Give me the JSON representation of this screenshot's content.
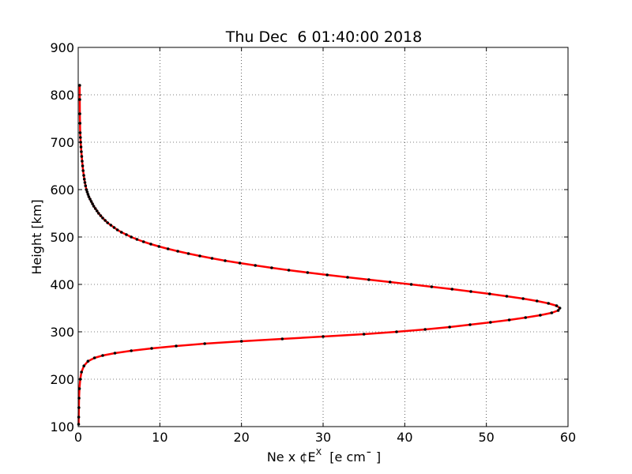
{
  "chart_data": {
    "type": "line",
    "title": "Thu Dec  6 01:40:00 2018",
    "xlabel": "Ne x ¢E",
    "xlabel_sup": "X",
    "xlabel_units": "  [e cm¯ ]",
    "ylabel": "Height [km]",
    "xlim": [
      0,
      60
    ],
    "ylim": [
      100,
      900
    ],
    "xticks": [
      0,
      10,
      20,
      30,
      40,
      50,
      60
    ],
    "yticks": [
      100,
      200,
      300,
      400,
      500,
      600,
      700,
      800,
      900
    ],
    "grid": true,
    "series": [
      {
        "color": "#ff0000",
        "marker_color": "#000000",
        "x": [
          0.05,
          0.06,
          0.08,
          0.1,
          0.15,
          0.25,
          0.4,
          0.7,
          1.2,
          2.0,
          3.0,
          4.5,
          6.5,
          9.0,
          12.0,
          15.5,
          20.0,
          25.0,
          30.0,
          35.0,
          39.0,
          42.5,
          45.5,
          48.0,
          50.5,
          52.8,
          54.8,
          56.6,
          58.0,
          58.8,
          59.0,
          58.6,
          57.6,
          56.2,
          54.5,
          52.5,
          50.4,
          48.1,
          45.8,
          43.3,
          40.8,
          38.2,
          35.6,
          33.0,
          30.5,
          28.1,
          25.8,
          23.7,
          21.7,
          19.8,
          18.0,
          16.4,
          14.9,
          13.5,
          12.2,
          11.0,
          9.9,
          8.9,
          8.0,
          7.2,
          6.5,
          5.9,
          5.3,
          4.8,
          4.4,
          4.0,
          3.6,
          3.3,
          3.0,
          2.75,
          2.5,
          2.3,
          2.1,
          1.9,
          1.75,
          1.6,
          1.45,
          1.3,
          1.2,
          1.1,
          1.0,
          0.9,
          0.82,
          0.75,
          0.68,
          0.6,
          0.54,
          0.48,
          0.43,
          0.38,
          0.34,
          0.3,
          0.27,
          0.24,
          0.22,
          0.2,
          0.19,
          0.18
        ],
        "y": [
          105,
          120,
          140,
          160,
          180,
          200,
          215,
          228,
          238,
          245,
          250,
          255,
          260,
          265,
          270,
          275,
          280,
          285,
          290,
          295,
          300,
          305,
          310,
          315,
          320,
          325,
          330,
          335,
          340,
          345,
          350,
          355,
          360,
          365,
          370,
          375,
          380,
          385,
          390,
          395,
          400,
          405,
          410,
          415,
          420,
          425,
          430,
          435,
          440,
          445,
          450,
          455,
          460,
          465,
          470,
          475,
          480,
          485,
          490,
          495,
          500,
          505,
          510,
          515,
          520,
          525,
          530,
          535,
          540,
          545,
          550,
          555,
          560,
          565,
          570,
          575,
          580,
          585,
          590,
          595,
          600,
          608,
          615,
          622,
          630,
          640,
          650,
          660,
          670,
          680,
          690,
          700,
          710,
          720,
          740,
          760,
          790,
          820
        ]
      }
    ]
  }
}
